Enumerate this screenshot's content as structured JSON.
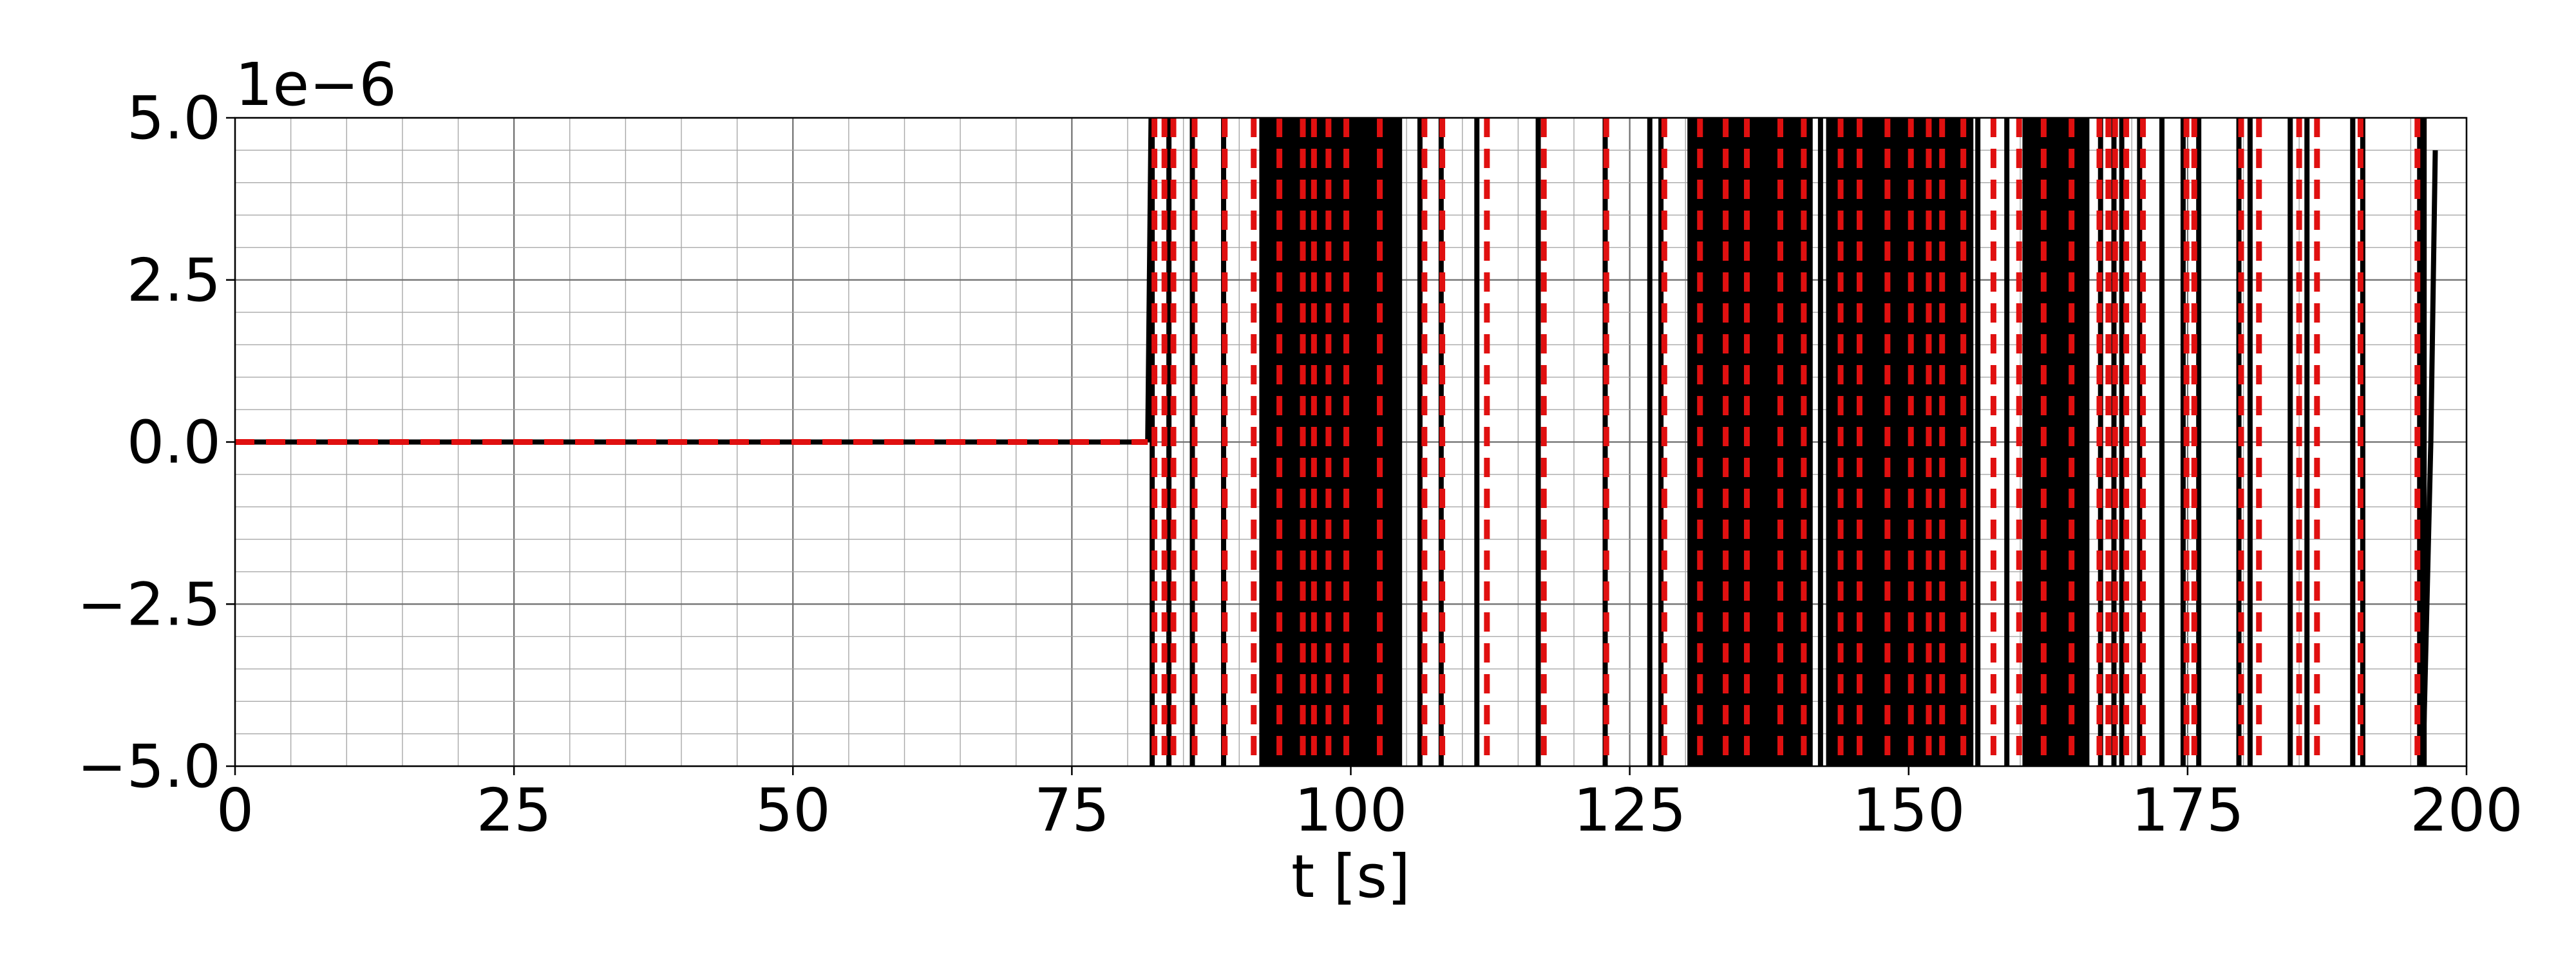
{
  "chart_data": {
    "type": "line",
    "title": "",
    "xlabel": "t [s]",
    "ylabel": "",
    "offset_label": "1e−6",
    "xlim": [
      0,
      200
    ],
    "ylim": [
      -5.0,
      5.0
    ],
    "x_ticks": [
      0,
      25,
      50,
      75,
      100,
      125,
      150,
      175,
      200
    ],
    "x_tick_labels": [
      "0",
      "25",
      "50",
      "75",
      "100",
      "125",
      "150",
      "175",
      "200"
    ],
    "y_ticks": [
      -5.0,
      -2.5,
      0.0,
      2.5,
      5.0
    ],
    "y_tick_labels": [
      "−5.0",
      "−2.5",
      "0.0",
      "2.5",
      "5.0"
    ],
    "x_minor_step": 5,
    "y_minor_step": 0.5,
    "grid": true,
    "legend": "none",
    "series": [
      {
        "line_style": "solid",
        "color": "#000000",
        "segments": [
          {
            "x": [
              0,
              81.8
            ],
            "y": [
              0,
              0
            ]
          },
          {
            "x": [
              81.8,
              82.1
            ],
            "y": [
              0,
              5.0
            ]
          }
        ],
        "vertical_crossings": [
          82.2,
          83.7,
          85.8,
          88.6,
          94.0,
          95.4,
          96.4,
          98.3,
          99.3,
          100.2,
          102.2,
          104.3,
          106.2,
          108.1,
          111.3,
          116.8,
          122.8,
          126.8,
          127.8,
          130.4,
          137.6,
          142.1,
          144.8,
          149.0,
          151.6,
          153.6,
          156.2,
          158.8,
          163.5,
          167.2,
          168.4,
          169.1,
          170.7,
          172.7,
          174.6,
          176.0,
          179.6,
          180.6,
          184.2,
          185.7,
          189.8,
          190.7,
          195.8,
          196.2
        ],
        "dense_bands": [
          [
            91.8,
            104.6
          ],
          [
            130.2,
            141.4
          ],
          [
            142.6,
            155.8
          ],
          [
            160.2,
            166.2
          ]
        ],
        "tail": {
          "x": [
            196.1,
            196.8,
            197.2
          ],
          "y": [
            -5.0,
            0.0,
            4.5
          ]
        }
      },
      {
        "line_style": "dashed",
        "color": "#e01010",
        "segments": [
          {
            "x": [
              0,
              81.8
            ],
            "y": [
              0,
              0
            ]
          }
        ],
        "vertical_crossings": [
          82.4,
          83.3,
          84.1,
          86.0,
          88.7,
          91.3,
          93.6,
          95.7,
          96.7,
          98.0,
          99.6,
          102.6,
          106.6,
          108.2,
          112.2,
          117.3,
          122.9,
          128.1,
          131.3,
          133.6,
          135.5,
          138.5,
          140.6,
          143.9,
          145.6,
          148.1,
          150.2,
          151.8,
          153.0,
          154.9,
          157.6,
          159.9,
          162.1,
          164.6,
          167.1,
          167.9,
          168.5,
          169.5,
          171.0,
          174.9,
          175.6,
          179.8,
          181.4,
          185.0,
          186.6,
          190.5,
          195.6
        ]
      }
    ]
  }
}
